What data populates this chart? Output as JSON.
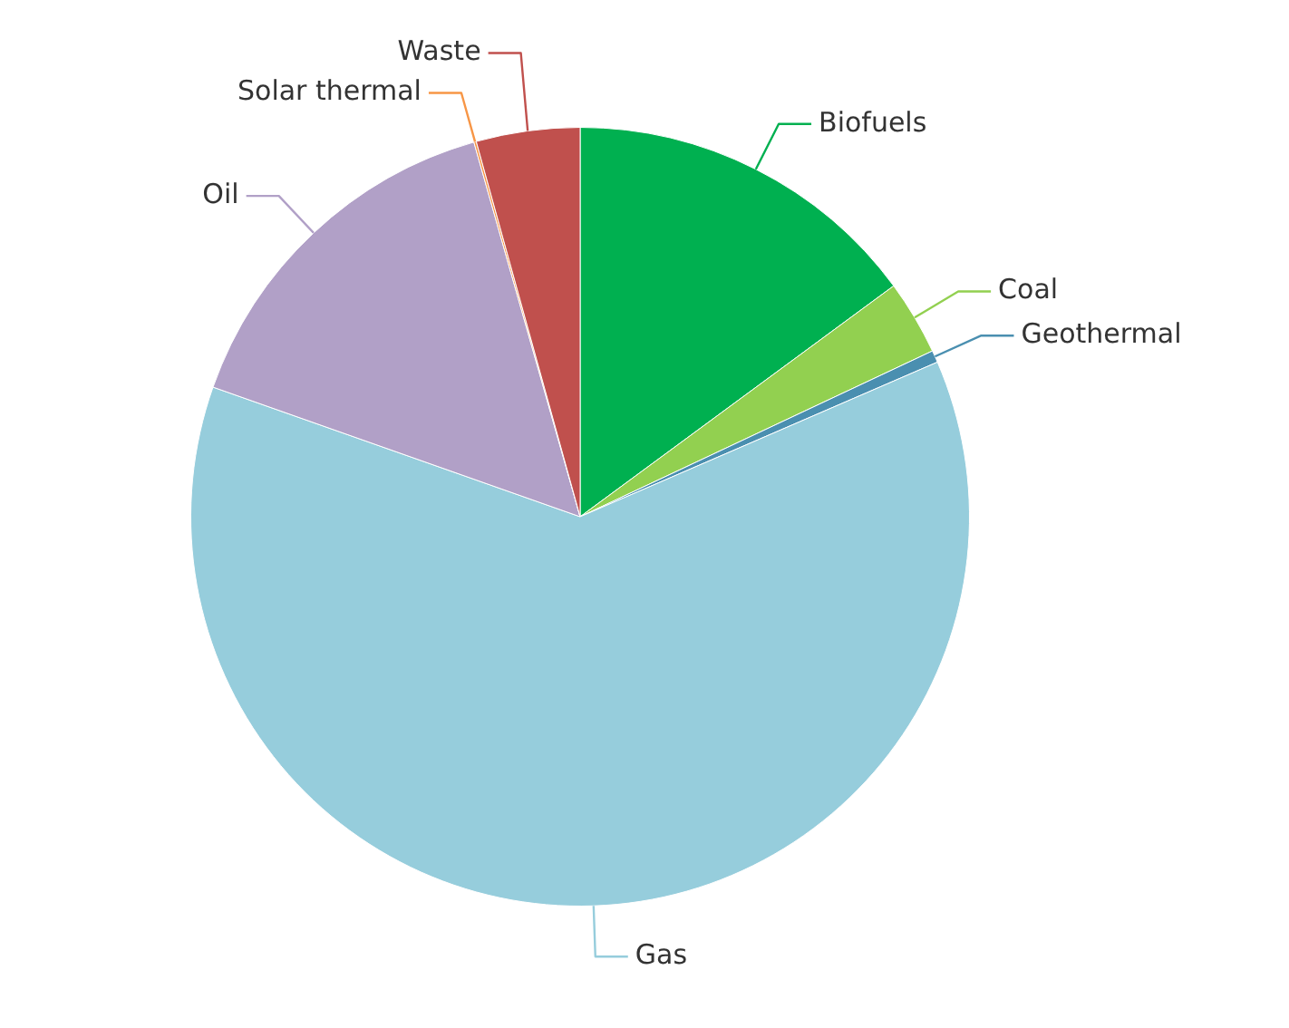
{
  "chart_data": {
    "type": "pie",
    "categories": [
      "Biofuels",
      "Coal",
      "Geothermal",
      "Gas",
      "Oil",
      "Solar thermal",
      "Waste"
    ],
    "values": [
      14.9,
      3.1,
      0.5,
      61.9,
      15.2,
      0.1,
      4.3
    ],
    "colors": [
      "#00b050",
      "#92d050",
      "#4a8fb0",
      "#96cddc",
      "#b1a0c7",
      "#f79646",
      "#c0504d"
    ]
  }
}
